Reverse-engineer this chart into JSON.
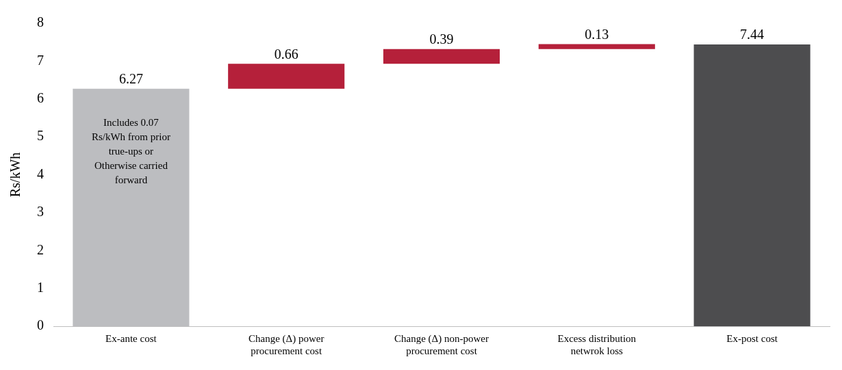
{
  "chart_data": {
    "type": "bar",
    "ylabel": "Rs/kWh",
    "categories": [
      "Ex-ante cost",
      "Change (Δ) power procurement cost",
      "Change (Δ) non-power procurement cost",
      "Excess distribution netwrok loss",
      "Ex-post cost"
    ],
    "values": [
      6.27,
      0.66,
      0.39,
      0.13,
      7.44
    ],
    "base": [
      0,
      6.27,
      6.93,
      7.32,
      0
    ],
    "colors": [
      "#bcbdc0",
      "#b5203a",
      "#b5203a",
      "#b5203a",
      "#4d4d4f"
    ],
    "ylim": [
      0,
      8
    ],
    "yticks": [
      0,
      1,
      2,
      3,
      4,
      5,
      6,
      7,
      8
    ],
    "grid": false,
    "legend": false,
    "data_labels": true,
    "annotations": [
      "Includes 0.07 Rs/kWh from prior true-ups or Otherwise carried forward"
    ]
  }
}
